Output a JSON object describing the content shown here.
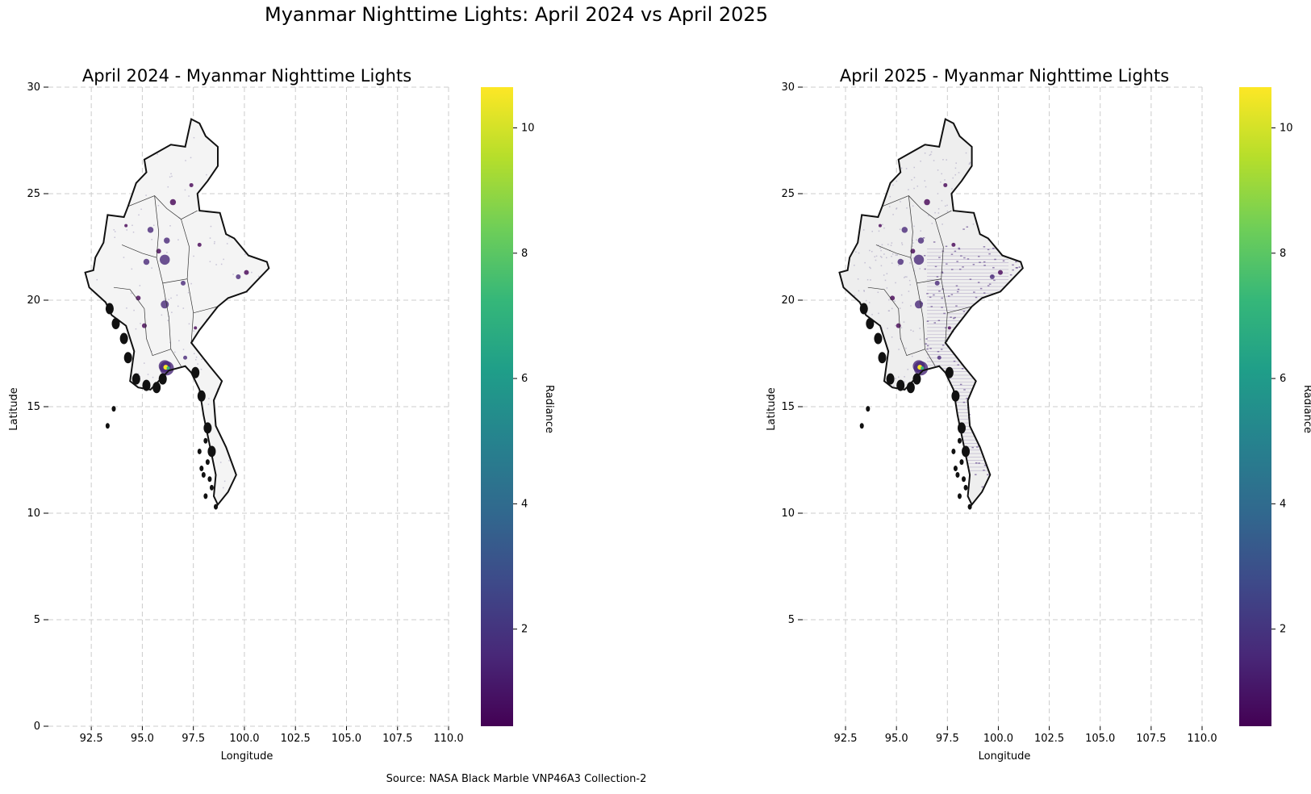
{
  "suptitle": "Myanmar Nighttime Lights: April 2024 vs April 2025",
  "source": "Source: NASA Black Marble VNP46A3 Collection-2",
  "colors": {
    "grid": "#cccccc",
    "border": "#111111",
    "viridis": [
      "#440154",
      "#482878",
      "#3e4989",
      "#31688e",
      "#26828e",
      "#1f9e89",
      "#35b779",
      "#6ece58",
      "#b5de2b",
      "#fde725"
    ]
  },
  "panels": [
    {
      "title": "April 2024 - Myanmar Nighttime Lights",
      "xlabel": "Longitude",
      "ylabel": "Latitude",
      "xticks": [
        "92.5",
        "95.0",
        "97.5",
        "100.0",
        "102.5",
        "105.0",
        "107.5",
        "110.0"
      ],
      "yticks": [
        "0",
        "5",
        "10",
        "15",
        "20",
        "25",
        "30"
      ],
      "colorbar_label": "Radiance",
      "colorbar_ticks": [
        "2",
        "4",
        "6",
        "8",
        "10"
      ]
    },
    {
      "title": "April 2025 - Myanmar Nighttime Lights",
      "xlabel": "Longitude",
      "ylabel": "Latitude",
      "xticks": [
        "92.5",
        "95.0",
        "97.5",
        "100.0",
        "102.5",
        "105.0",
        "107.5",
        "110.0"
      ],
      "yticks": [
        "5",
        "10",
        "15",
        "20",
        "25",
        "30"
      ],
      "colorbar_label": "Radiance",
      "colorbar_ticks": [
        "2",
        "4",
        "6",
        "8",
        "10"
      ]
    }
  ]
}
